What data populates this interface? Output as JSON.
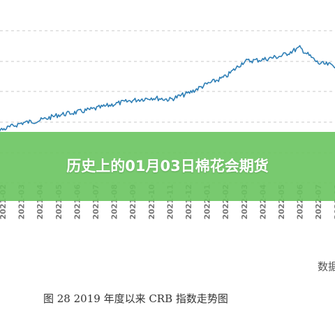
{
  "banner": {
    "title": "历史上的01月03日棉花会期货"
  },
  "caption": "图 28    2019 年度以来 CRB 指数走势图",
  "corner_note": "数据",
  "chart_data": {
    "type": "line",
    "title": "",
    "xlabel": "",
    "ylabel": "",
    "grid": true,
    "x_ticks": [
      "2021-02",
      "2021-03",
      "2021-04",
      "2021-05",
      "2021-06",
      "2021-07",
      "2021-08",
      "2021-09",
      "2021-10",
      "2021-11",
      "2021-12",
      "2022-01",
      "2022-02",
      "2022-03",
      "2022-04",
      "2022-05",
      "2022-06",
      "2022-07",
      "2022-08"
    ],
    "series": [
      {
        "name": "",
        "color": "#2f7fb6",
        "points": [
          [
            "2020-11",
            0.0
          ],
          [
            "2020-12",
            0.04
          ],
          [
            "2021-01",
            0.02
          ],
          [
            "2021-02",
            0.05
          ],
          [
            "2021-03",
            0.12
          ],
          [
            "2021-04",
            0.15
          ],
          [
            "2021-05",
            0.21
          ],
          [
            "2021-06",
            0.24
          ],
          [
            "2021-07",
            0.28
          ],
          [
            "2021-08",
            0.33
          ],
          [
            "2021-09",
            0.37
          ],
          [
            "2021-10",
            0.4
          ],
          [
            "2021-11",
            0.38
          ],
          [
            "2021-12",
            0.45
          ],
          [
            "2022-01",
            0.55
          ],
          [
            "2022-02",
            0.63
          ],
          [
            "2022-03",
            0.8
          ],
          [
            "2022-04",
            0.82
          ],
          [
            "2022-05",
            0.86
          ],
          [
            "2022-06",
            0.95
          ],
          [
            "2022-07",
            0.78
          ],
          [
            "2022-08",
            0.75
          ]
        ]
      }
    ]
  }
}
